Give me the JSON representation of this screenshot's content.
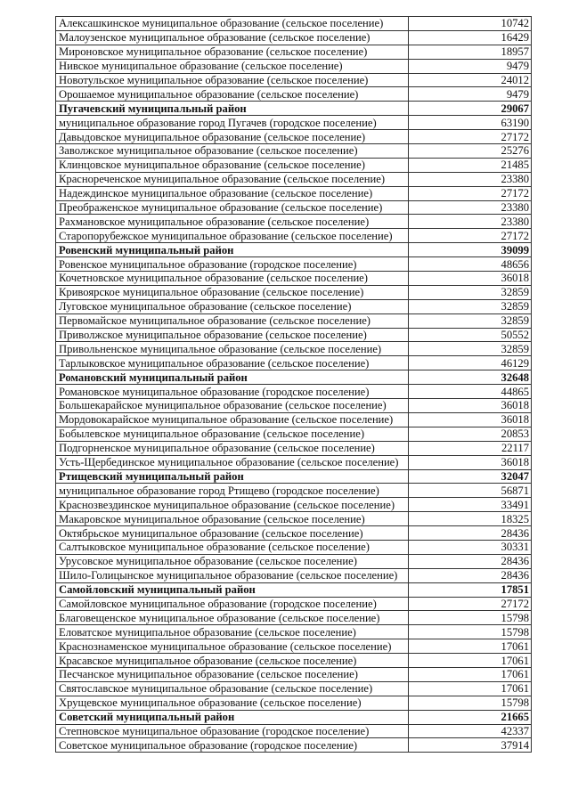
{
  "rows": [
    {
      "name": "Алексашкинское  муниципальное образование (сельское поселение)",
      "value": "10742",
      "bold": false
    },
    {
      "name": "Малоузенское  муниципальное образование (сельское поселение)",
      "value": "16429",
      "bold": false
    },
    {
      "name": "Мироновское  муниципальное образование (сельское поселение)",
      "value": "18957",
      "bold": false
    },
    {
      "name": "Нивское  муниципальное образование (сельское поселение)",
      "value": "9479",
      "bold": false
    },
    {
      "name": "Новотульское  муниципальное образование (сельское поселение)",
      "value": "24012",
      "bold": false
    },
    {
      "name": "Орошаемое муниципальное образование (сельское поселение)",
      "value": "9479",
      "bold": false
    },
    {
      "name": "Пугачевский муниципальный район",
      "value": "29067",
      "bold": true
    },
    {
      "name": "муниципальное образование город Пугачев (городское поселение)",
      "value": "63190",
      "bold": false
    },
    {
      "name": "Давыдовское  муниципальное образование (сельское поселение)",
      "value": "27172",
      "bold": false
    },
    {
      "name": "Заволжское  муниципальное образование (сельское поселение)",
      "value": "25276",
      "bold": false
    },
    {
      "name": "Клинцовское  муниципальное образование (сельское поселение)",
      "value": "21485",
      "bold": false
    },
    {
      "name": "Красноречен­ское  муниципальное образование (сельское поселение)",
      "value": "23380",
      "bold": false
    },
    {
      "name": "Надеждинское  муниципальное образование (сельское поселение)",
      "value": "27172",
      "bold": false
    },
    {
      "name": "Преображенское  муниципальное образование (сельское поселение)",
      "value": "23380",
      "bold": false
    },
    {
      "name": "Рахмановское  муниципальное образование (сельское поселение)",
      "value": "23380",
      "bold": false
    },
    {
      "name": "Старопорубежское  муниципальное образование (сельское поселение)",
      "value": "27172",
      "bold": false
    },
    {
      "name": "Ровенский муниципальный район",
      "value": "39099",
      "bold": true
    },
    {
      "name": "Ровенское  муниципальное образование (городское поселение)",
      "value": "48656",
      "bold": false
    },
    {
      "name": "Кочетновское  муниципальное образование (сельское поселение)",
      "value": "36018",
      "bold": false
    },
    {
      "name": "Кривоярское  муниципальное образование (сельское поселение)",
      "value": "32859",
      "bold": false
    },
    {
      "name": "Луговское  муниципальное образование (сельское поселение)",
      "value": "32859",
      "bold": false
    },
    {
      "name": "Первомайское  муниципальное образование (сельское поселение)",
      "value": "32859",
      "bold": false
    },
    {
      "name": "Приволжское  муниципальное образование (сельское поселение)",
      "value": "50552",
      "bold": false
    },
    {
      "name": "Привольненское  муниципальное образование (сельское поселение)",
      "value": "32859",
      "bold": false
    },
    {
      "name": "Тарлыковское  муниципальное образование (сельское поселение)",
      "value": "46129",
      "bold": false
    },
    {
      "name": "Романовский муниципальный район",
      "value": "32648",
      "bold": true
    },
    {
      "name": "Романовское  муниципальное образование (городское поселение)",
      "value": "44865",
      "bold": false
    },
    {
      "name": "Большекарайское  муниципальное образование (сельское поселение)",
      "value": "36018",
      "bold": false
    },
    {
      "name": "Мордовокарайское  муниципальное образование (сельское поселение)",
      "value": "36018",
      "bold": false
    },
    {
      "name": "Бобылевское муниципальное образование (сельское поселение)",
      "value": "20853",
      "bold": false
    },
    {
      "name": "Подгорненское  муниципальное образование (сельское поселение)",
      "value": "22117",
      "bold": false
    },
    {
      "name": "Усть-Щербединское  муниципальное образование (сельское поселение)",
      "value": "36018",
      "bold": false
    },
    {
      "name": "Ртищевский муниципальный район",
      "value": "32047",
      "bold": true
    },
    {
      "name": "муниципальное образование город Ртищево (городское поселение)",
      "value": "56871",
      "bold": false
    },
    {
      "name": "Краснозвездинское  муниципальное образование (сельское поселение)",
      "value": "33491",
      "bold": false
    },
    {
      "name": "Макаровское  муниципальное образование (сельское поселение)",
      "value": "18325",
      "bold": false
    },
    {
      "name": "Октябрьское  муниципальное образование (сельское поселение)",
      "value": "28436",
      "bold": false
    },
    {
      "name": "Салтыковское  муниципальное образование (сельское поселение)",
      "value": "30331",
      "bold": false
    },
    {
      "name": "Урусовское  муниципальное образование (сельское поселение)",
      "value": "28436",
      "bold": false
    },
    {
      "name": "Шило-Голицынское  муниципальное образование (сельское поселение)",
      "value": "28436",
      "bold": false
    },
    {
      "name": "Самойловский муниципальный район",
      "value": "17851",
      "bold": true
    },
    {
      "name": "Самойловское муниципальное образование (городское поселение)",
      "value": "27172",
      "bold": false
    },
    {
      "name": "Благовещенское муниципальное образование (сельское поселение)",
      "value": "15798",
      "bold": false
    },
    {
      "name": "Еловатское муниципальное образование (сельское поселение)",
      "value": "15798",
      "bold": false
    },
    {
      "name": "Краснознаменское  муниципальное образование (сельское поселение)",
      "value": "17061",
      "bold": false
    },
    {
      "name": "Красавское муниципальное образование (сельское поселение)",
      "value": "17061",
      "bold": false
    },
    {
      "name": "Песчанское муниципальное образование (сельское поселение)",
      "value": "17061",
      "bold": false
    },
    {
      "name": "Святославское муниципальное образование (сельское поселение)",
      "value": "17061",
      "bold": false
    },
    {
      "name": "Хрущевское муниципальное образование (сельское поселение)",
      "value": "15798",
      "bold": false
    },
    {
      "name": "Советский муниципальный район",
      "value": "21665",
      "bold": true
    },
    {
      "name": "Степновское  муниципальное образование (городское поселение)",
      "value": "42337",
      "bold": false
    },
    {
      "name": "Советское  муниципальное образование (городское поселение)",
      "value": "37914",
      "bold": false
    }
  ]
}
